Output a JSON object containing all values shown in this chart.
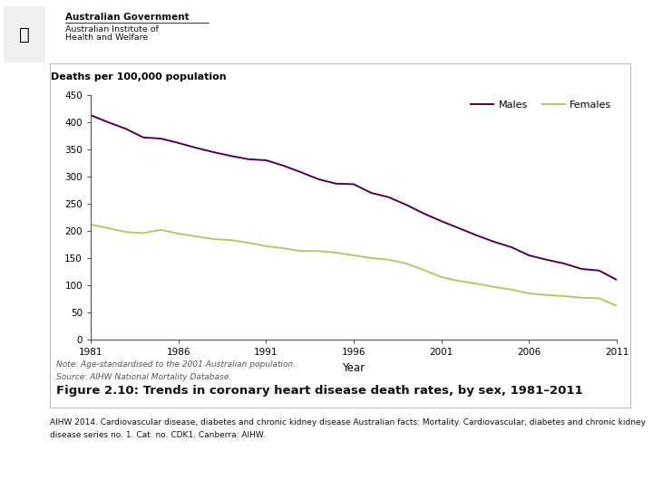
{
  "years": [
    1981,
    1982,
    1983,
    1984,
    1985,
    1986,
    1987,
    1988,
    1989,
    1990,
    1991,
    1992,
    1993,
    1994,
    1995,
    1996,
    1997,
    1998,
    1999,
    2000,
    2001,
    2002,
    2003,
    2004,
    2005,
    2006,
    2007,
    2008,
    2009,
    2010,
    2011
  ],
  "males": [
    413,
    400,
    388,
    372,
    370,
    362,
    353,
    345,
    338,
    332,
    330,
    320,
    308,
    295,
    287,
    286,
    270,
    262,
    248,
    232,
    218,
    205,
    192,
    180,
    170,
    155,
    147,
    140,
    130,
    127,
    110
  ],
  "females": [
    212,
    205,
    198,
    196,
    202,
    195,
    190,
    185,
    183,
    178,
    172,
    168,
    163,
    163,
    160,
    155,
    150,
    147,
    140,
    128,
    115,
    108,
    103,
    97,
    92,
    85,
    82,
    80,
    77,
    76,
    62
  ],
  "males_color": "#4d004b",
  "females_color": "#aec96b",
  "xlim": [
    1981,
    2011
  ],
  "ylim": [
    0,
    450
  ],
  "yticks": [
    0,
    50,
    100,
    150,
    200,
    250,
    300,
    350,
    400,
    450
  ],
  "xticks": [
    1981,
    1986,
    1991,
    1996,
    2001,
    2006,
    2011
  ],
  "ylabel_text": "Deaths per 100,000 population",
  "xlabel_text": "Year",
  "legend_males": "Males",
  "legend_females": "Females",
  "note_line1": "Note: Age-standardised to the 2001 Australian population.",
  "note_line2": "Source: AIHW National Mortality Database.",
  "figure_caption": "Figure 2.10: Trends in coronary heart disease death rates, by sex, 1981–2011",
  "bottom_text_line1": "AIHW 2014. Cardiovascular disease, diabetes and chronic kidney disease Australian facts: Mortality. Cardiovascular, diabetes and chronic kidney",
  "bottom_text_line2": "disease series no. 1. Cat. no. CDK1. Canberra: AIHW.",
  "line_width": 1.4,
  "bg_color": "#ffffff",
  "panel_bg": "#ffffff",
  "bottom_bar_color": "#5c6e27",
  "border_color": "#bbbbbb",
  "govt_text": "Australian Government",
  "institute_line1": "Australian Institute of",
  "institute_line2": "Health and Welfare"
}
